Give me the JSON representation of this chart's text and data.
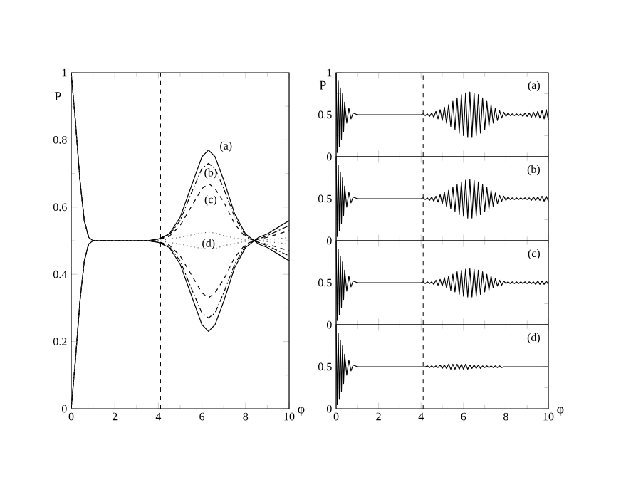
{
  "chart_data": [
    {
      "type": "line",
      "xlabel": "φ",
      "ylabel": "P",
      "xlim": [
        0,
        10
      ],
      "ylim": [
        0,
        1
      ],
      "xticks": [
        0,
        2,
        4,
        6,
        8,
        10
      ],
      "yticks": [
        0,
        0.2,
        0.4,
        0.6,
        0.8,
        1
      ],
      "x": [
        0,
        0.2,
        0.4,
        0.6,
        0.8,
        1,
        2,
        3,
        3.5,
        4,
        4.5,
        5,
        5.5,
        6,
        6.3,
        6.6,
        7,
        7.5,
        8,
        8.4,
        8.6,
        9,
        9.5,
        10
      ],
      "series": [
        {
          "color": "#000000",
          "line_style": "solid",
          "values": [
            1,
            0.85,
            0.68,
            0.56,
            0.51,
            0.5,
            0.5,
            0.5,
            0.5,
            0.505,
            0.52,
            0.57,
            0.66,
            0.75,
            0.77,
            0.75,
            0.68,
            0.58,
            0.52,
            0.5,
            0.51,
            0.52,
            0.54,
            0.56
          ]
        },
        {
          "color": "#000000",
          "line_style": "solid",
          "values": [
            0,
            0.15,
            0.32,
            0.44,
            0.49,
            0.5,
            0.5,
            0.5,
            0.5,
            0.495,
            0.48,
            0.43,
            0.34,
            0.25,
            0.23,
            0.25,
            0.32,
            0.42,
            0.48,
            0.5,
            0.49,
            0.48,
            0.46,
            0.44
          ]
        },
        {
          "color": "#000000",
          "line_style": "dashdot",
          "values": [
            1,
            0.85,
            0.68,
            0.56,
            0.51,
            0.5,
            0.5,
            0.5,
            0.5,
            0.504,
            0.517,
            0.56,
            0.64,
            0.715,
            0.73,
            0.715,
            0.655,
            0.57,
            0.515,
            0.5,
            0.505,
            0.515,
            0.53,
            0.545
          ]
        },
        {
          "color": "#000000",
          "line_style": "dashdot",
          "values": [
            0,
            0.15,
            0.32,
            0.44,
            0.49,
            0.5,
            0.5,
            0.5,
            0.5,
            0.496,
            0.483,
            0.44,
            0.36,
            0.285,
            0.27,
            0.285,
            0.345,
            0.43,
            0.485,
            0.5,
            0.495,
            0.485,
            0.47,
            0.455
          ]
        },
        {
          "color": "#000000",
          "line_style": "dashed",
          "values": [
            1,
            0.85,
            0.68,
            0.56,
            0.51,
            0.5,
            0.5,
            0.5,
            0.5,
            0.503,
            0.513,
            0.545,
            0.6,
            0.655,
            0.67,
            0.655,
            0.615,
            0.55,
            0.51,
            0.5,
            0.505,
            0.51,
            0.52,
            0.53
          ]
        },
        {
          "color": "#000000",
          "line_style": "dashed",
          "values": [
            0,
            0.15,
            0.32,
            0.44,
            0.49,
            0.5,
            0.5,
            0.5,
            0.5,
            0.497,
            0.487,
            0.455,
            0.4,
            0.345,
            0.33,
            0.345,
            0.385,
            0.45,
            0.49,
            0.5,
            0.495,
            0.49,
            0.48,
            0.47
          ]
        },
        {
          "color": "#555555",
          "line_style": "dotted",
          "values": [
            1,
            0.85,
            0.68,
            0.56,
            0.51,
            0.5,
            0.5,
            0.5,
            0.5,
            0.5,
            0.505,
            0.51,
            0.517,
            0.523,
            0.525,
            0.523,
            0.515,
            0.508,
            0.502,
            0.5,
            0.5,
            0.503,
            0.506,
            0.51
          ]
        },
        {
          "color": "#555555",
          "line_style": "dotted",
          "values": [
            0,
            0.15,
            0.32,
            0.44,
            0.49,
            0.5,
            0.5,
            0.5,
            0.5,
            0.5,
            0.495,
            0.49,
            0.483,
            0.477,
            0.475,
            0.477,
            0.485,
            0.492,
            0.498,
            0.5,
            0.5,
            0.497,
            0.494,
            0.49
          ]
        }
      ],
      "ref_lines": [
        {
          "axis": "x",
          "value": 4.1,
          "line_style": "dashed"
        }
      ],
      "annotations": [
        "(a)",
        "(b)",
        "(c)",
        "(d)"
      ]
    },
    {
      "type": "line",
      "ylabel": "P",
      "xlim": [
        0,
        10
      ],
      "ylim": [
        0,
        1
      ],
      "xticks": [
        0,
        2,
        4,
        6,
        8,
        10
      ],
      "yticks": [
        0,
        0.5,
        1
      ],
      "tick_labels": "y",
      "x": [
        0,
        0.05,
        0.1,
        0.15,
        0.2,
        0.25,
        0.3,
        0.35,
        0.4,
        0.5,
        0.6,
        0.7,
        0.8,
        1,
        2,
        3,
        4,
        4.1,
        4.2,
        4.3,
        4.4,
        4.5,
        4.6,
        4.7,
        4.8,
        4.9,
        5.0,
        5.1,
        5.2,
        5.3,
        5.4,
        5.5,
        5.6,
        5.7,
        5.8,
        5.9,
        6.0,
        6.1,
        6.2,
        6.3,
        6.4,
        6.5,
        6.6,
        6.7,
        6.8,
        6.9,
        7.0,
        7.1,
        7.2,
        7.3,
        7.4,
        7.5,
        7.6,
        7.7,
        7.8,
        7.9,
        8.0,
        8.1,
        8.2,
        8.3,
        8.4,
        8.5,
        8.6,
        8.7,
        8.8,
        8.9,
        9.0,
        9.1,
        9.2,
        9.3,
        9.4,
        9.5,
        9.6,
        9.7,
        9.8,
        9.9,
        10.0
      ],
      "series": [
        {
          "color": "#000000",
          "line_style": "solid",
          "values": [
            1,
            0.05,
            0.9,
            0.12,
            0.82,
            0.2,
            0.75,
            0.3,
            0.65,
            0.4,
            0.58,
            0.45,
            0.52,
            0.5,
            0.5,
            0.5,
            0.5,
            0.51,
            0.49,
            0.51,
            0.48,
            0.52,
            0.47,
            0.54,
            0.45,
            0.56,
            0.43,
            0.59,
            0.4,
            0.62,
            0.36,
            0.66,
            0.32,
            0.7,
            0.28,
            0.74,
            0.25,
            0.76,
            0.23,
            0.77,
            0.23,
            0.76,
            0.25,
            0.74,
            0.28,
            0.7,
            0.32,
            0.66,
            0.36,
            0.62,
            0.4,
            0.58,
            0.43,
            0.55,
            0.46,
            0.53,
            0.48,
            0.52,
            0.49,
            0.51,
            0.49,
            0.51,
            0.49,
            0.51,
            0.48,
            0.52,
            0.48,
            0.52,
            0.47,
            0.53,
            0.47,
            0.54,
            0.46,
            0.55,
            0.45,
            0.56,
            0.44
          ]
        }
      ],
      "ref_lines": [
        {
          "axis": "x",
          "value": 4.1,
          "line_style": "dashed"
        }
      ],
      "annotations": [
        "(a)"
      ]
    },
    {
      "type": "line",
      "xlim": [
        0,
        10
      ],
      "ylim": [
        0,
        1
      ],
      "xticks": [
        0,
        2,
        4,
        6,
        8,
        10
      ],
      "yticks": [
        0,
        0.5
      ],
      "tick_labels": "y",
      "x": [
        0,
        0.05,
        0.1,
        0.15,
        0.2,
        0.25,
        0.3,
        0.35,
        0.4,
        0.5,
        0.6,
        0.7,
        0.8,
        1,
        2,
        3,
        4,
        4.1,
        4.2,
        4.3,
        4.4,
        4.5,
        4.6,
        4.7,
        4.8,
        4.9,
        5.0,
        5.1,
        5.2,
        5.3,
        5.4,
        5.5,
        5.6,
        5.7,
        5.8,
        5.9,
        6.0,
        6.1,
        6.2,
        6.3,
        6.4,
        6.5,
        6.6,
        6.7,
        6.8,
        6.9,
        7.0,
        7.1,
        7.2,
        7.3,
        7.4,
        7.5,
        7.6,
        7.7,
        7.8,
        7.9,
        8.0,
        8.1,
        8.2,
        8.3,
        8.4,
        8.5,
        8.6,
        8.7,
        8.8,
        8.9,
        9.0,
        9.1,
        9.2,
        9.3,
        9.4,
        9.5,
        9.6,
        9.7,
        9.8,
        9.9,
        10.0
      ],
      "series": [
        {
          "color": "#000000",
          "line_style": "solid",
          "values": [
            1,
            0.05,
            0.9,
            0.12,
            0.82,
            0.2,
            0.75,
            0.3,
            0.65,
            0.4,
            0.58,
            0.45,
            0.52,
            0.5,
            0.5,
            0.5,
            0.5,
            0.51,
            0.49,
            0.51,
            0.48,
            0.52,
            0.47,
            0.53,
            0.46,
            0.55,
            0.44,
            0.58,
            0.41,
            0.6,
            0.38,
            0.64,
            0.35,
            0.67,
            0.31,
            0.7,
            0.29,
            0.72,
            0.27,
            0.73,
            0.27,
            0.72,
            0.29,
            0.7,
            0.31,
            0.67,
            0.35,
            0.64,
            0.38,
            0.6,
            0.41,
            0.57,
            0.44,
            0.54,
            0.47,
            0.53,
            0.48,
            0.52,
            0.49,
            0.51,
            0.49,
            0.51,
            0.49,
            0.51,
            0.49,
            0.51,
            0.49,
            0.51,
            0.48,
            0.52,
            0.48,
            0.52,
            0.48,
            0.53,
            0.47,
            0.53,
            0.47
          ]
        }
      ],
      "ref_lines": [
        {
          "axis": "x",
          "value": 4.1,
          "line_style": "dashed"
        }
      ],
      "annotations": [
        "(b)"
      ]
    },
    {
      "type": "line",
      "xlim": [
        0,
        10
      ],
      "ylim": [
        0,
        1
      ],
      "xticks": [
        0,
        2,
        4,
        6,
        8,
        10
      ],
      "yticks": [
        0,
        0.5
      ],
      "tick_labels": "y",
      "x": [
        0,
        0.05,
        0.1,
        0.15,
        0.2,
        0.25,
        0.3,
        0.35,
        0.4,
        0.5,
        0.6,
        0.7,
        0.8,
        1,
        2,
        3,
        4,
        4.1,
        4.2,
        4.3,
        4.4,
        4.5,
        4.6,
        4.7,
        4.8,
        4.9,
        5.0,
        5.1,
        5.2,
        5.3,
        5.4,
        5.5,
        5.6,
        5.7,
        5.8,
        5.9,
        6.0,
        6.1,
        6.2,
        6.3,
        6.4,
        6.5,
        6.6,
        6.7,
        6.8,
        6.9,
        7.0,
        7.1,
        7.2,
        7.3,
        7.4,
        7.5,
        7.6,
        7.7,
        7.8,
        7.9,
        8.0,
        8.1,
        8.2,
        8.3,
        8.4,
        8.5,
        8.6,
        8.7,
        8.8,
        8.9,
        9.0,
        9.1,
        9.2,
        9.3,
        9.4,
        9.5,
        9.6,
        9.7,
        9.8,
        9.9,
        10.0
      ],
      "series": [
        {
          "color": "#000000",
          "line_style": "solid",
          "values": [
            1,
            0.05,
            0.9,
            0.12,
            0.82,
            0.2,
            0.75,
            0.3,
            0.65,
            0.4,
            0.58,
            0.45,
            0.52,
            0.5,
            0.5,
            0.5,
            0.5,
            0.51,
            0.49,
            0.51,
            0.49,
            0.51,
            0.48,
            0.53,
            0.47,
            0.54,
            0.46,
            0.56,
            0.44,
            0.58,
            0.41,
            0.6,
            0.39,
            0.63,
            0.36,
            0.65,
            0.34,
            0.66,
            0.33,
            0.67,
            0.33,
            0.66,
            0.34,
            0.65,
            0.36,
            0.63,
            0.39,
            0.6,
            0.41,
            0.58,
            0.44,
            0.55,
            0.46,
            0.53,
            0.47,
            0.52,
            0.49,
            0.51,
            0.49,
            0.51,
            0.49,
            0.51,
            0.49,
            0.51,
            0.49,
            0.51,
            0.49,
            0.51,
            0.49,
            0.51,
            0.48,
            0.52,
            0.48,
            0.52,
            0.48,
            0.52,
            0.48
          ]
        }
      ],
      "ref_lines": [
        {
          "axis": "x",
          "value": 4.1,
          "line_style": "dashed"
        }
      ],
      "annotations": [
        "(c)"
      ]
    },
    {
      "type": "line",
      "xlabel": "φ",
      "xlim": [
        0,
        10
      ],
      "ylim": [
        0,
        1
      ],
      "xticks": [
        0,
        2,
        4,
        6,
        8,
        10
      ],
      "yticks": [
        0,
        0.5
      ],
      "x": [
        0,
        0.05,
        0.1,
        0.15,
        0.2,
        0.25,
        0.3,
        0.35,
        0.4,
        0.5,
        0.6,
        0.7,
        0.8,
        1,
        2,
        3,
        4,
        4.1,
        4.2,
        4.3,
        4.4,
        4.5,
        4.6,
        4.7,
        4.8,
        4.9,
        5.0,
        5.1,
        5.2,
        5.3,
        5.4,
        5.5,
        5.6,
        5.7,
        5.8,
        5.9,
        6.0,
        6.1,
        6.2,
        6.3,
        6.4,
        6.5,
        6.6,
        6.7,
        6.8,
        6.9,
        7.0,
        7.1,
        7.2,
        7.3,
        7.4,
        7.5,
        7.6,
        7.7,
        7.8,
        7.9,
        8.0,
        8.1,
        8.2,
        8.3,
        8.4,
        8.5,
        8.6,
        8.7,
        8.8,
        8.9,
        9.0,
        9.1,
        9.2,
        9.3,
        9.4,
        9.5,
        9.6,
        9.7,
        9.8,
        9.9,
        10.0
      ],
      "series": [
        {
          "color": "#000000",
          "line_style": "solid",
          "values": [
            1,
            0.05,
            0.9,
            0.12,
            0.82,
            0.2,
            0.75,
            0.3,
            0.65,
            0.4,
            0.58,
            0.45,
            0.52,
            0.5,
            0.5,
            0.5,
            0.5,
            0.5,
            0.5,
            0.51,
            0.49,
            0.51,
            0.49,
            0.51,
            0.49,
            0.52,
            0.48,
            0.52,
            0.48,
            0.53,
            0.47,
            0.53,
            0.47,
            0.53,
            0.47,
            0.53,
            0.47,
            0.53,
            0.47,
            0.52,
            0.48,
            0.52,
            0.48,
            0.52,
            0.48,
            0.51,
            0.49,
            0.51,
            0.49,
            0.51,
            0.49,
            0.51,
            0.49,
            0.51,
            0.49,
            0.5,
            0.5,
            0.5,
            0.5,
            0.5,
            0.5,
            0.5,
            0.5,
            0.5,
            0.5,
            0.5,
            0.5,
            0.5,
            0.5,
            0.5,
            0.5,
            0.5,
            0.5,
            0.5,
            0.5,
            0.5,
            0.5
          ]
        }
      ],
      "ref_lines": [
        {
          "axis": "x",
          "value": 4.1,
          "line_style": "dashed"
        }
      ],
      "annotations": [
        "(d)"
      ]
    }
  ]
}
